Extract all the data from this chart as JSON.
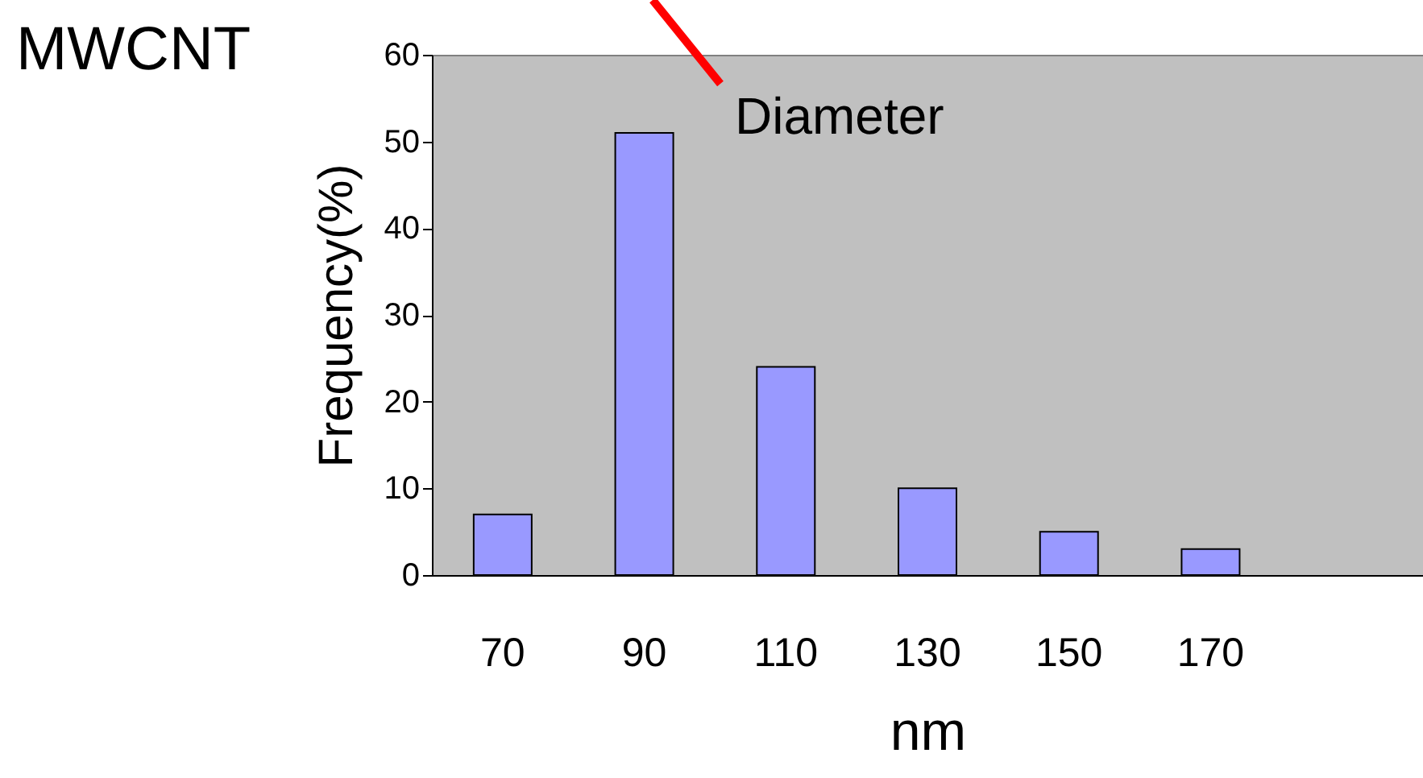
{
  "chart_data": {
    "type": "bar",
    "title": "MWCNT",
    "xlabel": "nm",
    "ylabel": "Frequency(%)",
    "annotations": [
      "Diameter"
    ],
    "categories": [
      "70",
      "90",
      "110",
      "130",
      "150",
      "170",
      null
    ],
    "values": [
      7,
      51,
      24,
      10,
      5,
      3,
      null
    ],
    "color": "#9999ff",
    "ylim": [
      0,
      60
    ],
    "yticks": [
      0,
      10,
      20,
      30,
      40,
      50,
      60
    ],
    "grid": false
  }
}
